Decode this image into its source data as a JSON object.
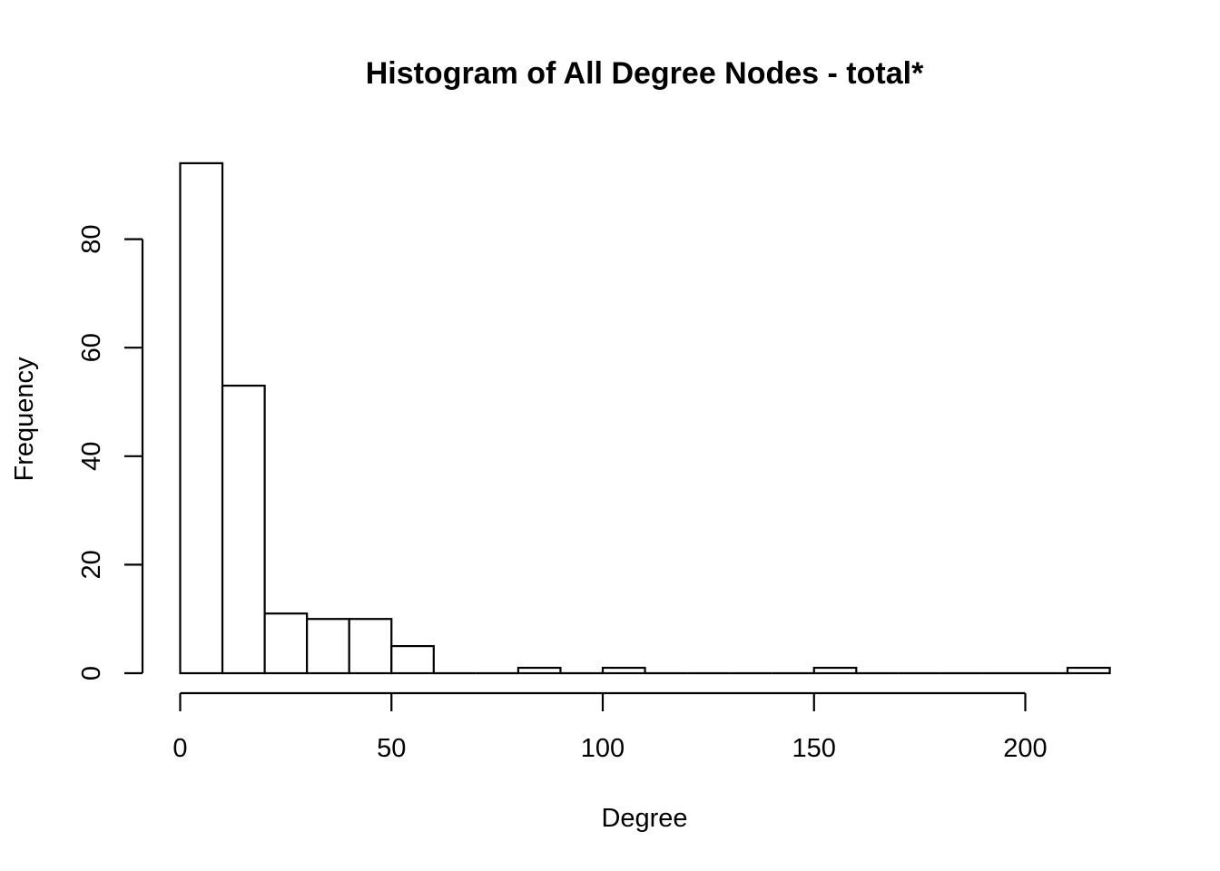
{
  "chart_data": {
    "type": "bar",
    "title": "Histogram of All Degree Nodes - total*",
    "xlabel": "Degree",
    "ylabel": "Frequency",
    "bin_width": 10,
    "bins": [
      {
        "start": 0,
        "end": 10,
        "count": 94
      },
      {
        "start": 10,
        "end": 20,
        "count": 53
      },
      {
        "start": 20,
        "end": 30,
        "count": 11
      },
      {
        "start": 30,
        "end": 40,
        "count": 10
      },
      {
        "start": 40,
        "end": 50,
        "count": 10
      },
      {
        "start": 50,
        "end": 60,
        "count": 5
      },
      {
        "start": 60,
        "end": 70,
        "count": 0
      },
      {
        "start": 70,
        "end": 80,
        "count": 0
      },
      {
        "start": 80,
        "end": 90,
        "count": 1
      },
      {
        "start": 90,
        "end": 100,
        "count": 0
      },
      {
        "start": 100,
        "end": 110,
        "count": 1
      },
      {
        "start": 110,
        "end": 120,
        "count": 0
      },
      {
        "start": 120,
        "end": 130,
        "count": 0
      },
      {
        "start": 130,
        "end": 140,
        "count": 0
      },
      {
        "start": 140,
        "end": 150,
        "count": 0
      },
      {
        "start": 150,
        "end": 160,
        "count": 1
      },
      {
        "start": 160,
        "end": 170,
        "count": 0
      },
      {
        "start": 170,
        "end": 180,
        "count": 0
      },
      {
        "start": 180,
        "end": 190,
        "count": 0
      },
      {
        "start": 190,
        "end": 200,
        "count": 0
      },
      {
        "start": 200,
        "end": 210,
        "count": 0
      },
      {
        "start": 210,
        "end": 220,
        "count": 1
      }
    ],
    "xticks": [
      "0",
      "50",
      "100",
      "150",
      "200"
    ],
    "yticks": [
      "0",
      "20",
      "40",
      "60",
      "80"
    ],
    "xlim": [
      0,
      220
    ],
    "ylim": [
      0,
      94
    ],
    "grid": false,
    "legend": "none"
  }
}
